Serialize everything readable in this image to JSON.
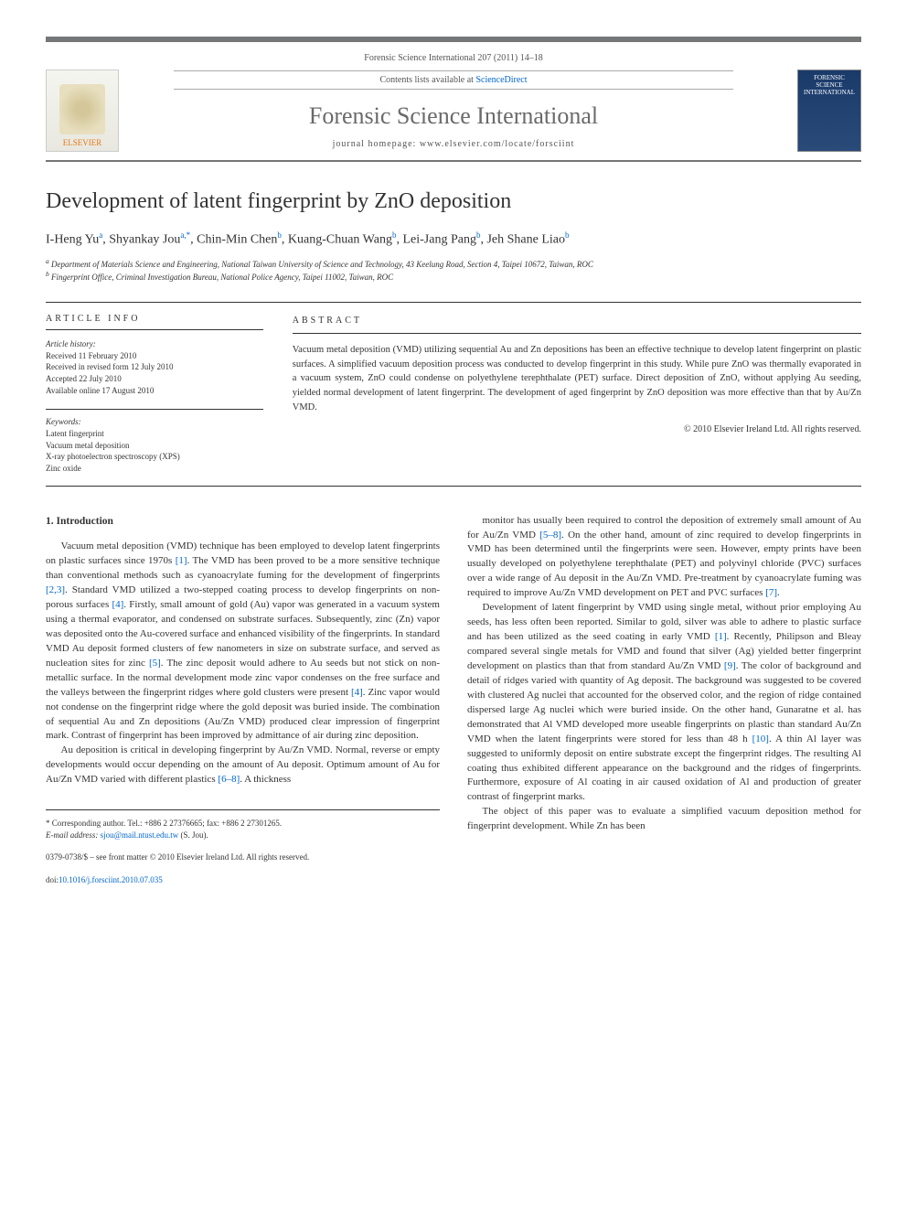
{
  "header": {
    "citation": "Forensic Science International 207 (2011) 14–18",
    "contents_line_prefix": "Contents lists available at ",
    "contents_link": "ScienceDirect",
    "journal": "Forensic Science International",
    "homepage_prefix": "journal homepage: ",
    "homepage": "www.elsevier.com/locate/forsciint",
    "publisher_logo": "ELSEVIER",
    "cover_label": "FORENSIC SCIENCE INTERNATIONAL"
  },
  "article": {
    "title": "Development of latent fingerprint by ZnO deposition",
    "authors_html": "I-Heng Yu",
    "authors": [
      {
        "name": "I-Heng Yu",
        "aff": "a"
      },
      {
        "name": "Shyankay Jou",
        "aff": "a,*"
      },
      {
        "name": "Chin-Min Chen",
        "aff": "b"
      },
      {
        "name": "Kuang-Chuan Wang",
        "aff": "b"
      },
      {
        "name": "Lei-Jang Pang",
        "aff": "b"
      },
      {
        "name": "Jeh Shane Liao",
        "aff": "b"
      }
    ],
    "affiliations": {
      "a": "Department of Materials Science and Engineering, National Taiwan University of Science and Technology, 43 Keelung Road, Section 4, Taipei 10672, Taiwan, ROC",
      "b": "Fingerprint Office, Criminal Investigation Bureau, National Police Agency, Taipei 11002, Taiwan, ROC"
    }
  },
  "info": {
    "heading": "ARTICLE INFO",
    "history_label": "Article history:",
    "received": "Received 11 February 2010",
    "revised": "Received in revised form 12 July 2010",
    "accepted": "Accepted 22 July 2010",
    "online": "Available online 17 August 2010",
    "keywords_label": "Keywords:",
    "keywords": [
      "Latent fingerprint",
      "Vacuum metal deposition",
      "X-ray photoelectron spectroscopy (XPS)",
      "Zinc oxide"
    ]
  },
  "abstract": {
    "heading": "ABSTRACT",
    "text": "Vacuum metal deposition (VMD) utilizing sequential Au and Zn depositions has been an effective technique to develop latent fingerprint on plastic surfaces. A simplified vacuum deposition process was conducted to develop fingerprint in this study. While pure ZnO was thermally evaporated in a vacuum system, ZnO could condense on polyethylene terephthalate (PET) surface. Direct deposition of ZnO, without applying Au seeding, yielded normal development of latent fingerprint. The development of aged fingerprint by ZnO deposition was more effective than that by Au/Zn VMD.",
    "copyright": "© 2010 Elsevier Ireland Ltd. All rights reserved."
  },
  "body": {
    "section1_heading": "1. Introduction",
    "col1_p1": "Vacuum metal deposition (VMD) technique has been employed to develop latent fingerprints on plastic surfaces since 1970s [1]. The VMD has been proved to be a more sensitive technique than conventional methods such as cyanoacrylate fuming for the development of fingerprints [2,3]. Standard VMD utilized a two-stepped coating process to develop fingerprints on non-porous surfaces [4]. Firstly, small amount of gold (Au) vapor was generated in a vacuum system using a thermal evaporator, and condensed on substrate surfaces. Subsequently, zinc (Zn) vapor was deposited onto the Au-covered surface and enhanced visibility of the fingerprints. In standard VMD Au deposit formed clusters of few nanometers in size on substrate surface, and served as nucleation sites for zinc [5]. The zinc deposit would adhere to Au seeds but not stick on non-metallic surface. In the normal development mode zinc vapor condenses on the free surface and the valleys between the fingerprint ridges where gold clusters were present [4]. Zinc vapor would not condense on the fingerprint ridge where the gold deposit was buried inside. The combination of sequential Au and Zn depositions (Au/Zn VMD) produced clear impression of fingerprint mark. Contrast of fingerprint has been improved by admittance of air during zinc deposition.",
    "col1_p2": "Au deposition is critical in developing fingerprint by Au/Zn VMD. Normal, reverse or empty developments would occur depending on the amount of Au deposit. Optimum amount of Au for Au/Zn VMD varied with different plastics [6–8]. A thickness",
    "col2_p1": "monitor has usually been required to control the deposition of extremely small amount of Au for Au/Zn VMD [5–8]. On the other hand, amount of zinc required to develop fingerprints in VMD has been determined until the fingerprints were seen. However, empty prints have been usually developed on polyethylene terephthalate (PET) and polyvinyl chloride (PVC) surfaces over a wide range of Au deposit in the Au/Zn VMD. Pre-treatment by cyanoacrylate fuming was required to improve Au/Zn VMD development on PET and PVC surfaces [7].",
    "col2_p2": "Development of latent fingerprint by VMD using single metal, without prior employing Au seeds, has less often been reported. Similar to gold, silver was able to adhere to plastic surface and has been utilized as the seed coating in early VMD [1]. Recently, Philipson and Bleay compared several single metals for VMD and found that silver (Ag) yielded better fingerprint development on plastics than that from standard Au/Zn VMD [9]. The color of background and detail of ridges varied with quantity of Ag deposit. The background was suggested to be covered with clustered Ag nuclei that accounted for the observed color, and the region of ridge contained dispersed large Ag nuclei which were buried inside. On the other hand, Gunaratne et al. has demonstrated that Al VMD developed more useable fingerprints on plastic than standard Au/Zn VMD when the latent fingerprints were stored for less than 48 h [10]. A thin Al layer was suggested to uniformly deposit on entire substrate except the fingerprint ridges. The resulting Al coating thus exhibited different appearance on the background and the ridges of fingerprints. Furthermore, exposure of Al coating in air caused oxidation of Al and production of greater contrast of fingerprint marks.",
    "col2_p3": "The object of this paper was to evaluate a simplified vacuum deposition method for fingerprint development. While Zn has been"
  },
  "footer": {
    "corr_label": "* Corresponding author. Tel.: +886 2 27376665; fax: +886 2 27301265.",
    "email_label": "E-mail address: ",
    "email": "sjou@mail.ntust.edu.tw",
    "email_suffix": " (S. Jou).",
    "issn_line": "0379-0738/$ – see front matter © 2010 Elsevier Ireland Ltd. All rights reserved.",
    "doi_prefix": "doi:",
    "doi": "10.1016/j.forsciint.2010.07.035"
  },
  "refs": {
    "r1": "[1]",
    "r23": "[2,3]",
    "r4": "[4]",
    "r5": "[5]",
    "r68": "[6–8]",
    "r58": "[5–8]",
    "r7": "[7]",
    "r9": "[9]",
    "r10": "[10]"
  },
  "style": {
    "accent_color": "#0066cc",
    "bar_color": "#747678",
    "text_color": "#333333",
    "body_fontsize": 11,
    "title_fontsize": 24,
    "journal_fontsize": 26
  }
}
